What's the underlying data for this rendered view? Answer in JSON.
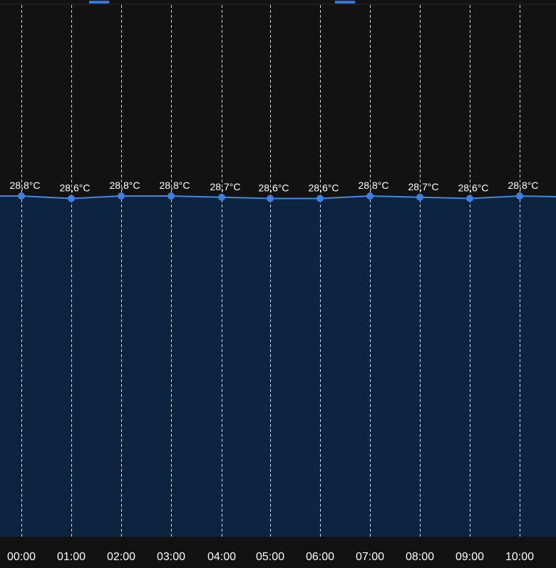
{
  "colors": {
    "background": "#121212",
    "area_fill": "#0c243f",
    "line": "#4a86d8",
    "point": "#3f7fe0",
    "gridline": "#d8d8d8",
    "text": "#ffffff",
    "tab_indicator": "#2f7ae6"
  },
  "chart_data": {
    "type": "area",
    "x": [
      "00:00",
      "01:00",
      "02:00",
      "03:00",
      "04:00",
      "05:00",
      "06:00",
      "07:00",
      "08:00",
      "09:00",
      "10:00"
    ],
    "series": [
      {
        "values": [
          28.8,
          28.6,
          28.8,
          28.8,
          28.7,
          28.6,
          28.6,
          28.8,
          28.7,
          28.6,
          28.8
        ],
        "labels": [
          "28,8°C",
          "28,6°C",
          "28,8°C",
          "28,8°C",
          "28,7°C",
          "28,6°C",
          "28,6°C",
          "28,8°C",
          "28,7°C",
          "28,6°C",
          "28,8°C"
        ]
      }
    ],
    "unit": "°C",
    "grid": {
      "vertical": true,
      "horizontal": false,
      "style": "dashed"
    },
    "legend": "none"
  }
}
